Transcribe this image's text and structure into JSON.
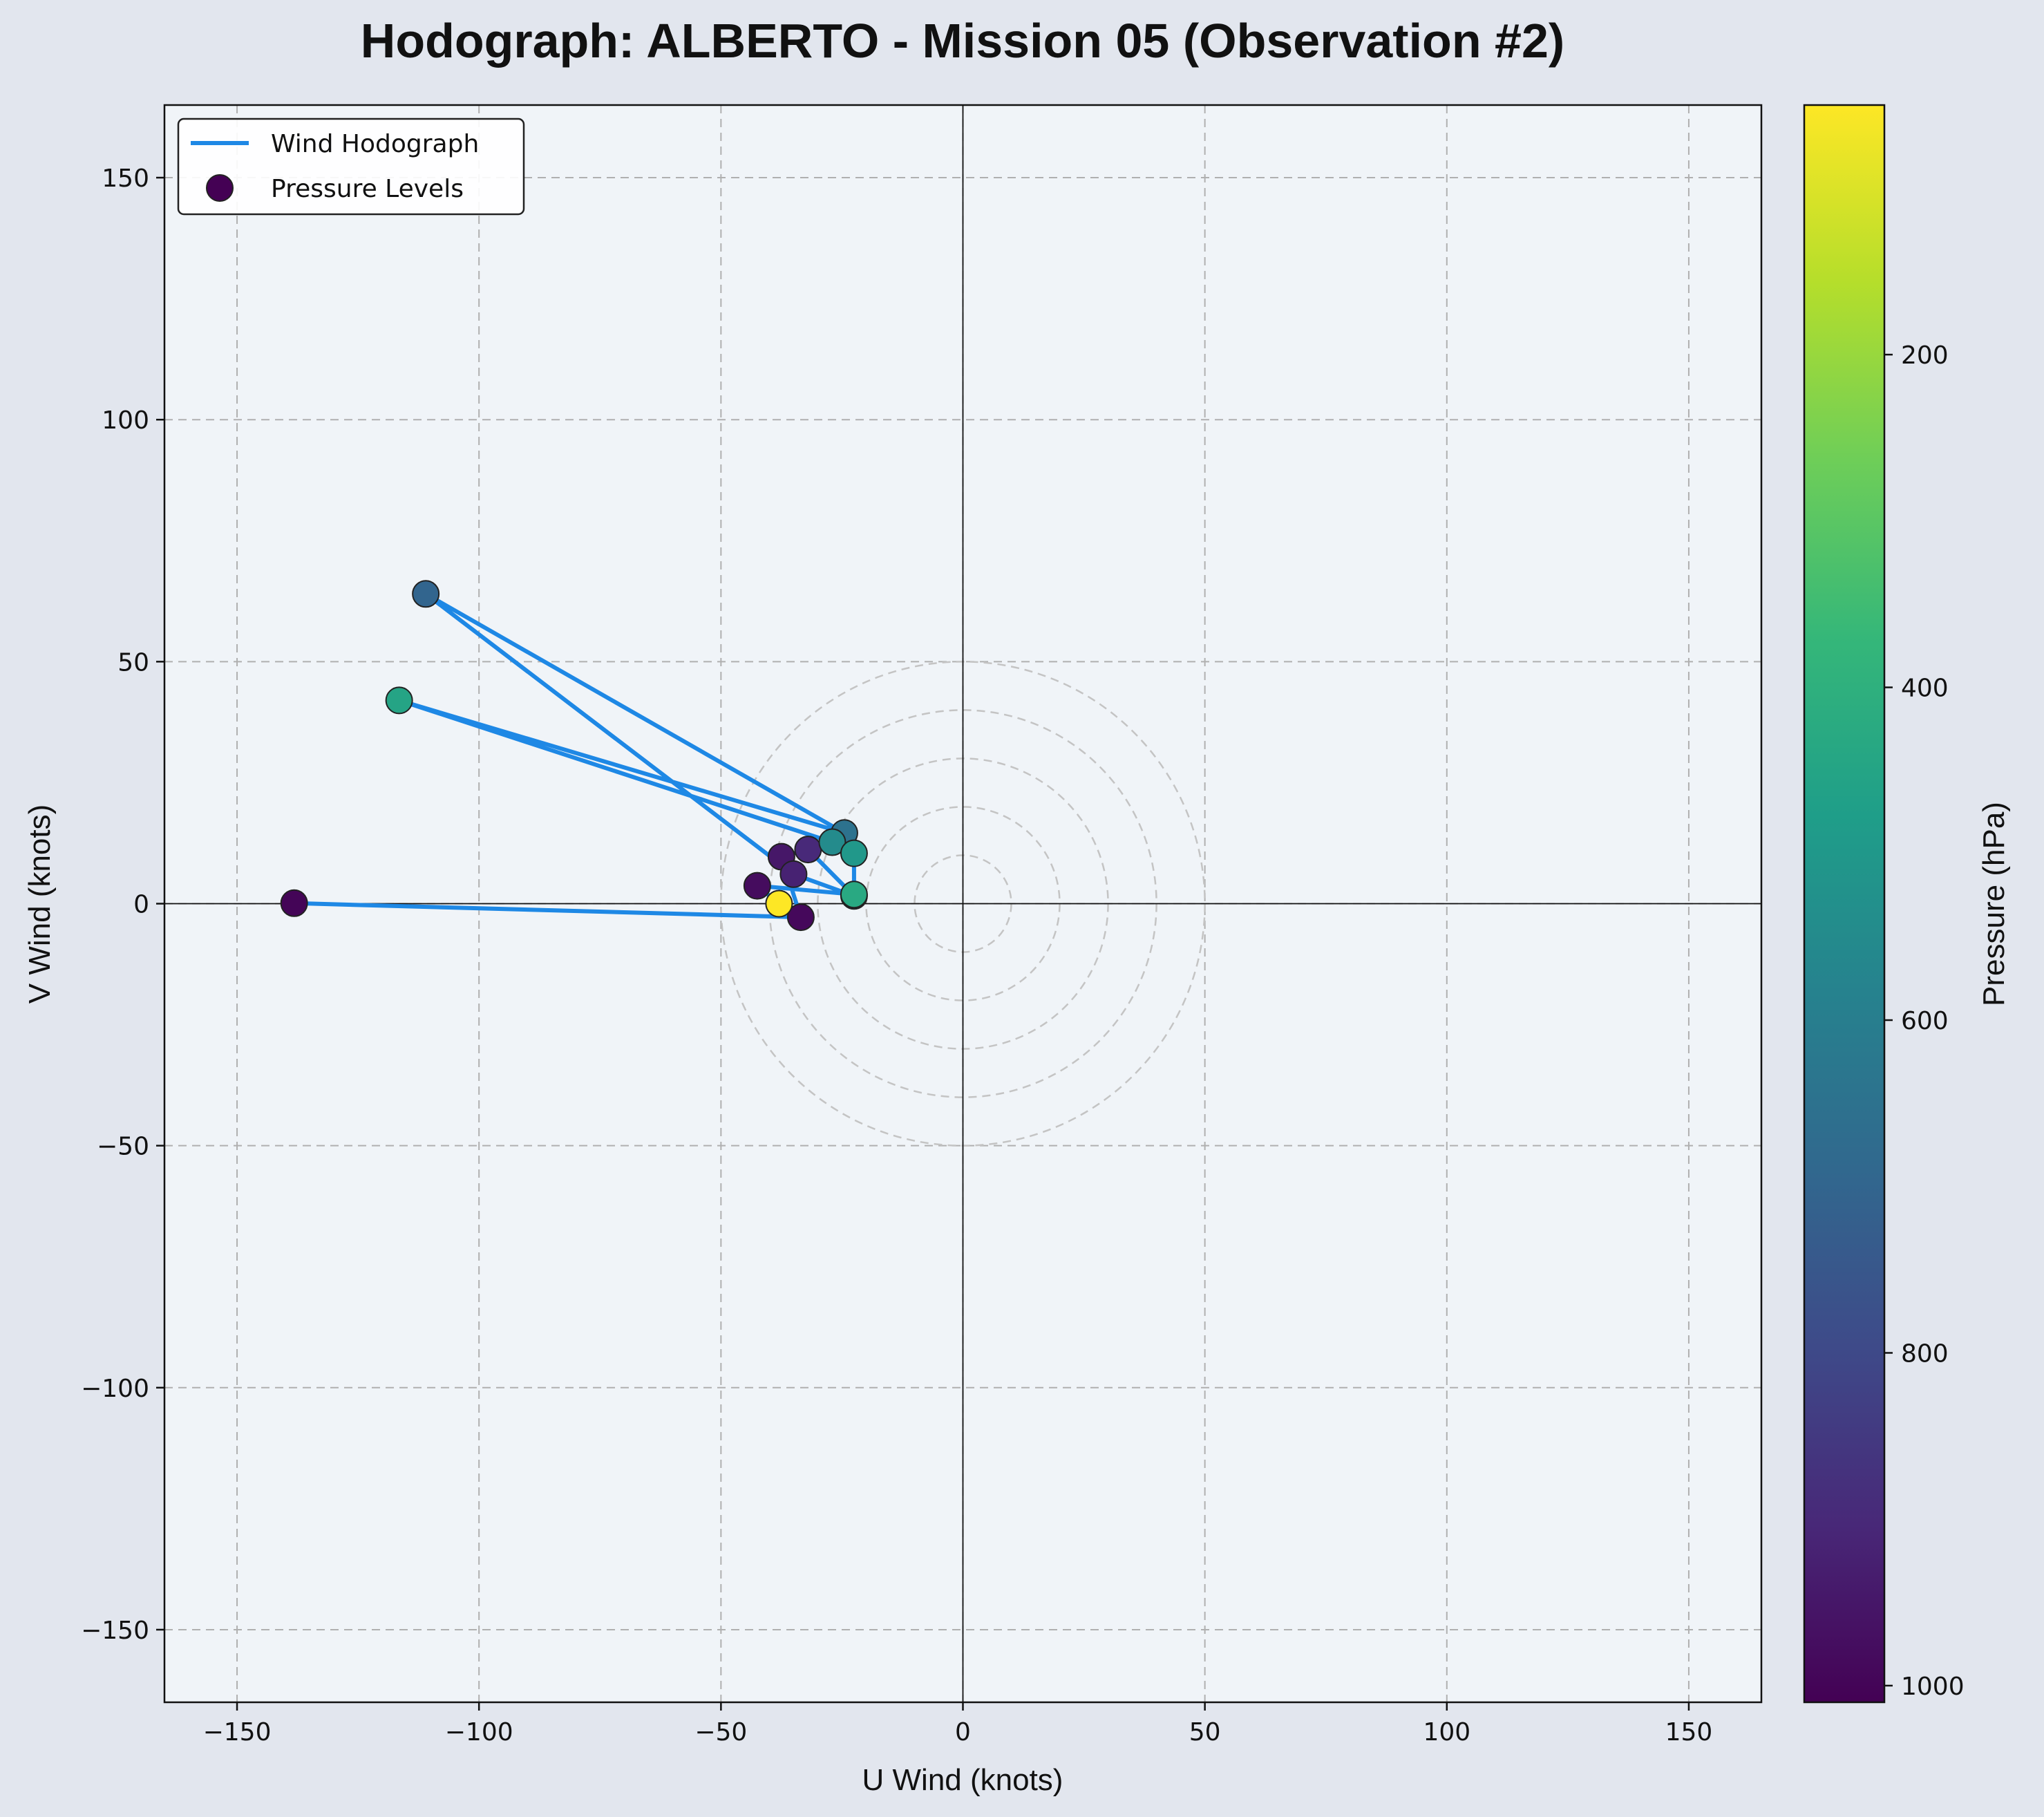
{
  "chart_data": {
    "type": "scatter",
    "title": "Hodograph: ALBERTO - Mission 05 (Observation #2)",
    "xlabel": "U Wind (knots)",
    "ylabel": "V Wind (knots)",
    "xlim": [
      -165,
      165
    ],
    "ylim": [
      -165,
      165
    ],
    "xticks": [
      -150,
      -100,
      -50,
      0,
      50,
      100,
      150
    ],
    "yticks": [
      -150,
      -100,
      -50,
      0,
      50,
      100,
      150
    ],
    "xtick_labels": [
      "−150",
      "−100",
      "−50",
      "0",
      "50",
      "100",
      "150"
    ],
    "ytick_labels": [
      "−150",
      "−100",
      "−50",
      "0",
      "50",
      "100",
      "150"
    ],
    "grid": true,
    "speed_rings": [
      10,
      20,
      30,
      40,
      50
    ],
    "legend": {
      "placement": "top-left",
      "entries": [
        "Wind Hodograph",
        "Pressure Levels"
      ]
    },
    "colorbar": {
      "label": "Pressure (hPa)",
      "range": [
        1010,
        50
      ],
      "ticks": [
        200,
        400,
        600,
        800,
        1000
      ],
      "colormap": [
        "#440154",
        "#482878",
        "#3e4a89",
        "#31688e",
        "#26828e",
        "#1f9e89",
        "#35b779",
        "#6ece58",
        "#b5de2b",
        "#fde725"
      ]
    },
    "line_color": "#1e88e5",
    "series": [
      {
        "name": "Wind Hodograph",
        "points": [
          {
            "u": -138.2,
            "v": 0.1,
            "p": 1000
          },
          {
            "u": -33.5,
            "v": -2.8,
            "p": 990
          },
          {
            "u": -37.5,
            "v": 9.7,
            "p": 950
          },
          {
            "u": -32.0,
            "v": 11.2,
            "p": 900
          },
          {
            "u": -22.5,
            "v": 1.6,
            "p": 850
          },
          {
            "u": -35.0,
            "v": 6.1,
            "p": 920
          },
          {
            "u": -111.0,
            "v": 64.0,
            "p": 700
          },
          {
            "u": -24.5,
            "v": 14.6,
            "p": 650
          },
          {
            "u": -116.5,
            "v": 42.0,
            "p": 450
          },
          {
            "u": -27.0,
            "v": 12.7,
            "p": 550
          },
          {
            "u": -22.5,
            "v": 10.4,
            "p": 500
          },
          {
            "u": -22.5,
            "v": 1.9,
            "p": 430
          },
          {
            "u": -42.5,
            "v": 3.7,
            "p": 980
          },
          {
            "u": -38.0,
            "v": 0.0,
            "p": 50
          }
        ]
      }
    ]
  }
}
